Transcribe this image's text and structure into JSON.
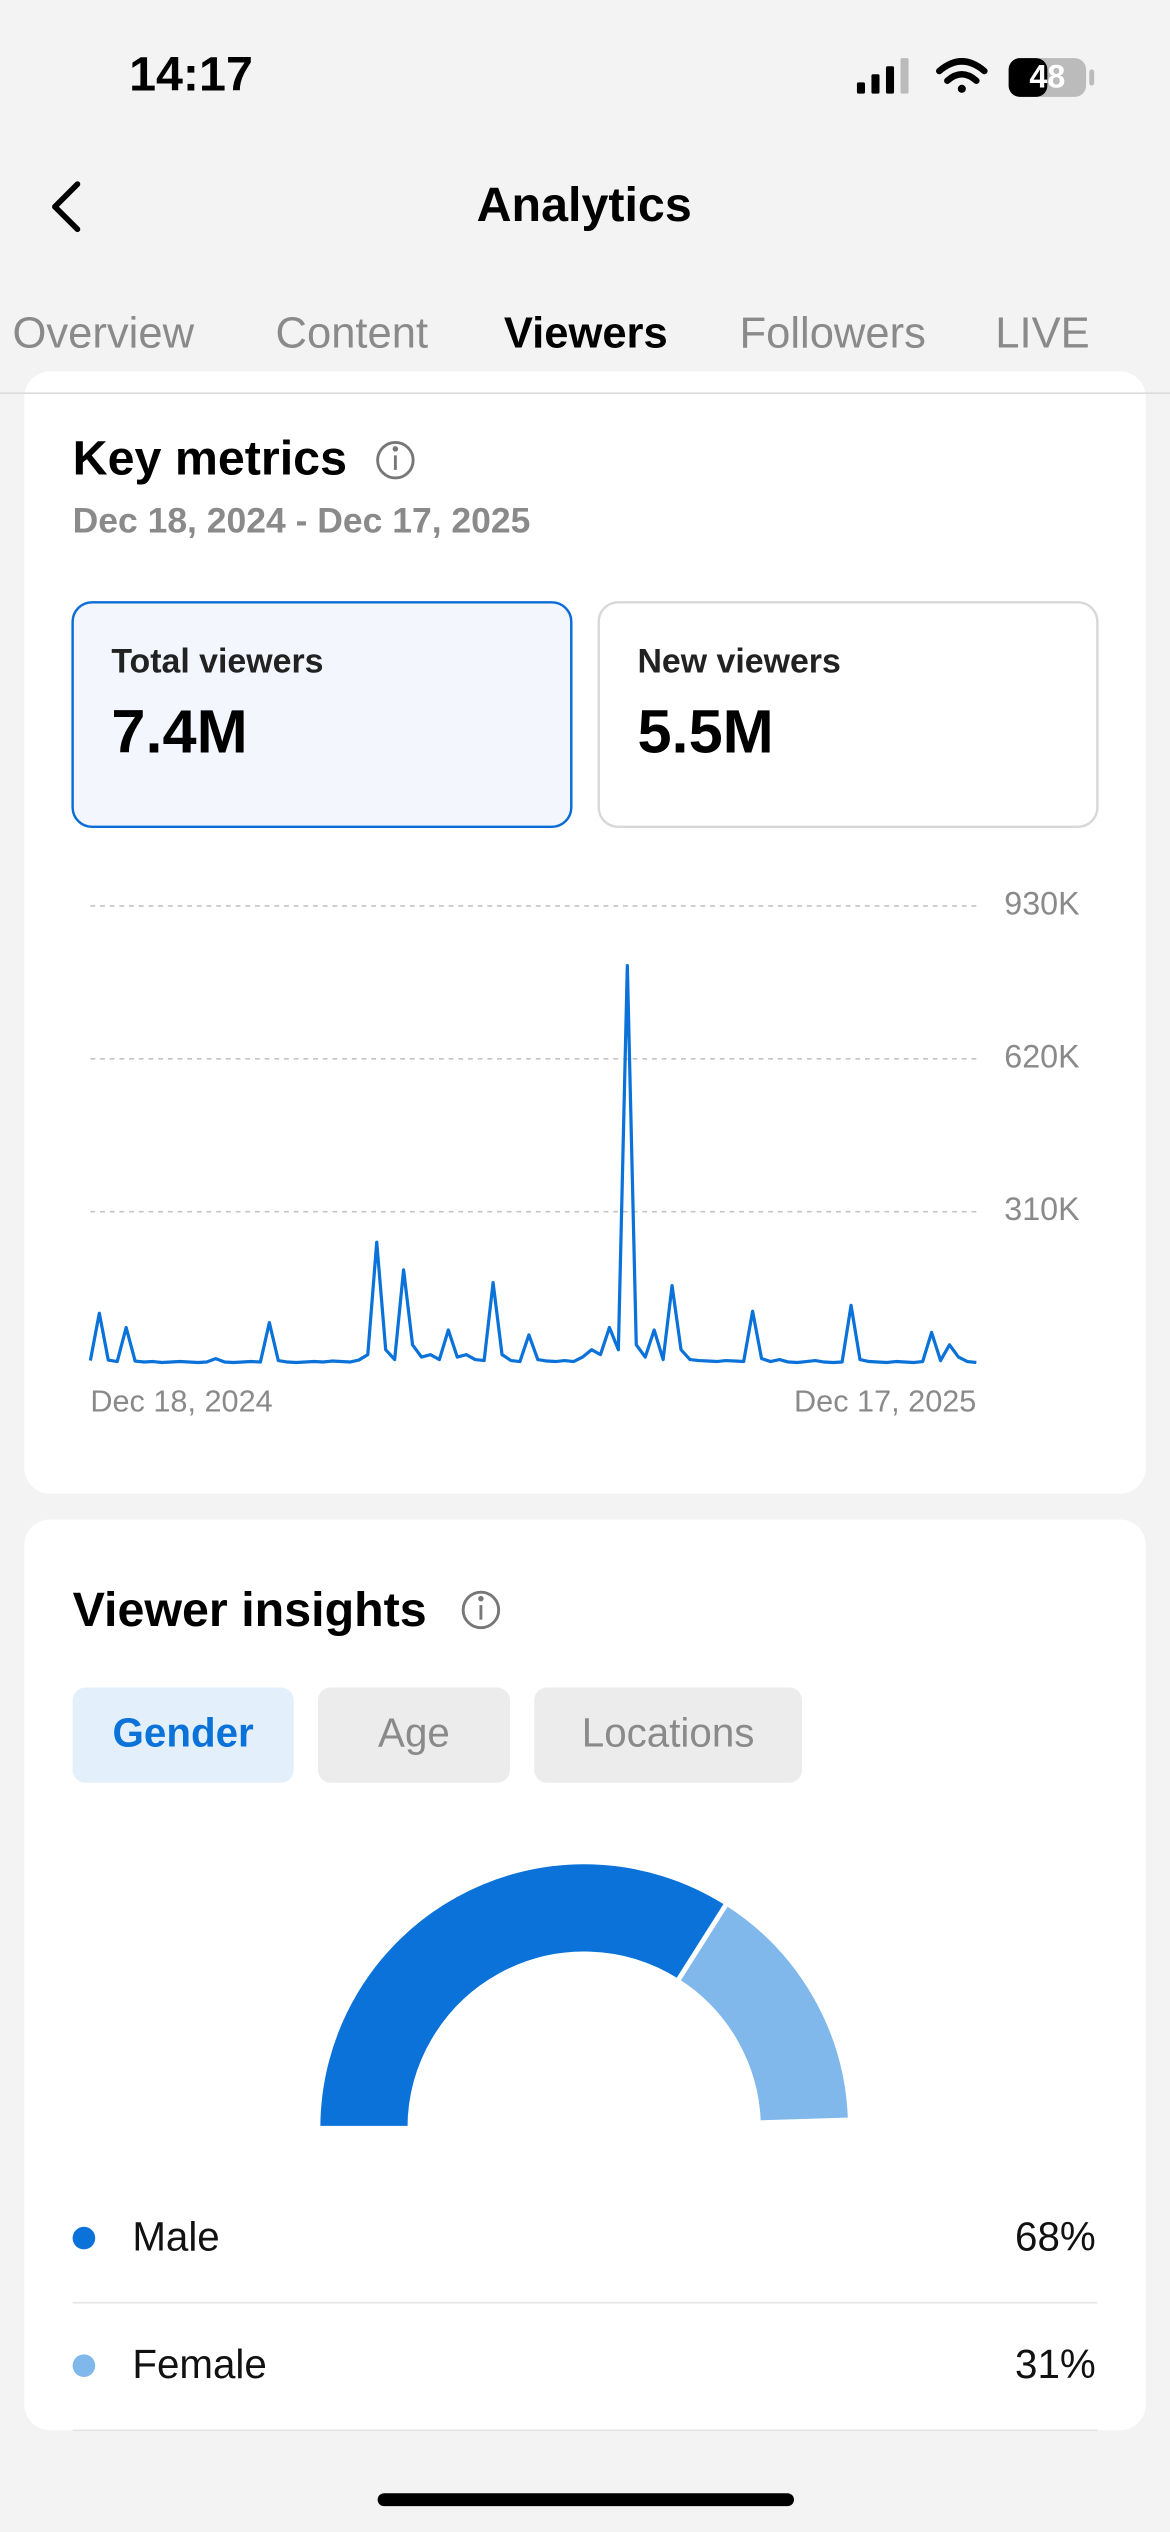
{
  "status_bar": {
    "time": "14:17",
    "battery": "48"
  },
  "header": {
    "title": "Analytics"
  },
  "tabs": [
    "Overview",
    "Content",
    "Viewers",
    "Followers",
    "LIVE"
  ],
  "key_metrics": {
    "title": "Key metrics",
    "date_range": "Dec 18, 2024 - Dec 17, 2025",
    "cards": [
      {
        "label": "Total viewers",
        "value": "7.4M"
      },
      {
        "label": "New viewers",
        "value": "5.5M"
      }
    ]
  },
  "viewer_insights": {
    "title": "Viewer insights",
    "filters": [
      "Gender",
      "Age",
      "Locations"
    ]
  },
  "chart_data": [
    {
      "type": "line",
      "categories": [
        "Dec 18, 2024",
        null,
        null,
        null,
        null,
        null,
        null,
        null,
        null,
        null,
        null,
        null,
        null,
        null,
        null,
        null,
        null,
        null,
        null,
        null,
        null,
        null,
        null,
        null,
        null,
        null,
        null,
        null,
        null,
        null,
        null,
        null,
        null,
        null,
        null,
        null,
        null,
        null,
        null,
        null,
        null,
        null,
        null,
        null,
        null,
        null,
        null,
        null,
        null,
        null,
        null,
        null,
        null,
        null,
        null,
        null,
        null,
        null,
        null,
        null,
        null,
        null,
        null,
        null,
        null,
        null,
        null,
        null,
        null,
        null,
        null,
        null,
        null,
        null,
        null,
        null,
        null,
        null,
        null,
        null,
        null,
        null,
        null,
        null,
        null,
        null,
        null,
        null,
        null,
        null,
        null,
        null,
        null,
        null,
        null,
        null,
        null,
        null,
        null,
        "Dec 17, 2025"
      ],
      "series": [
        {
          "color": "#0a72d8",
          "values": [
            8000,
            104000,
            9000,
            6000,
            75000,
            7000,
            5000,
            6000,
            4000,
            5000,
            6000,
            5000,
            4000,
            5000,
            12000,
            5000,
            4000,
            5000,
            6000,
            5000,
            85000,
            8000,
            5000,
            4000,
            5000,
            6000,
            5000,
            7000,
            6000,
            5000,
            9000,
            20000,
            248000,
            30000,
            10000,
            192000,
            40000,
            15000,
            20000,
            10000,
            70000,
            15000,
            20000,
            10000,
            8000,
            166000,
            20000,
            8000,
            6000,
            60000,
            10000,
            7000,
            6000,
            8000,
            6000,
            15000,
            30000,
            20000,
            75000,
            30000,
            809000,
            40000,
            15000,
            70000,
            10000,
            160000,
            30000,
            10000,
            8000,
            7000,
            6000,
            8000,
            7000,
            6000,
            108000,
            12000,
            6000,
            10000,
            5000,
            4000,
            6000,
            8000,
            5000,
            4000,
            5000,
            120000,
            10000,
            6000,
            5000,
            4000,
            6000,
            5000,
            4000,
            6000,
            65000,
            8000,
            40000,
            15000,
            6000,
            4000
          ]
        }
      ],
      "ylim": [
        0,
        930000
      ],
      "yticks": [
        {
          "value": 310000,
          "label": "310K"
        },
        {
          "value": 620000,
          "label": "620K"
        },
        {
          "value": 930000,
          "label": "930K"
        }
      ],
      "grid": true
    },
    {
      "type": "pie",
      "categories": [
        "Male",
        "Female"
      ],
      "values": [
        68,
        31
      ],
      "value_labels": [
        "68%",
        "31%"
      ],
      "colors": [
        "#0a72d8",
        "#80b8ec"
      ]
    }
  ]
}
